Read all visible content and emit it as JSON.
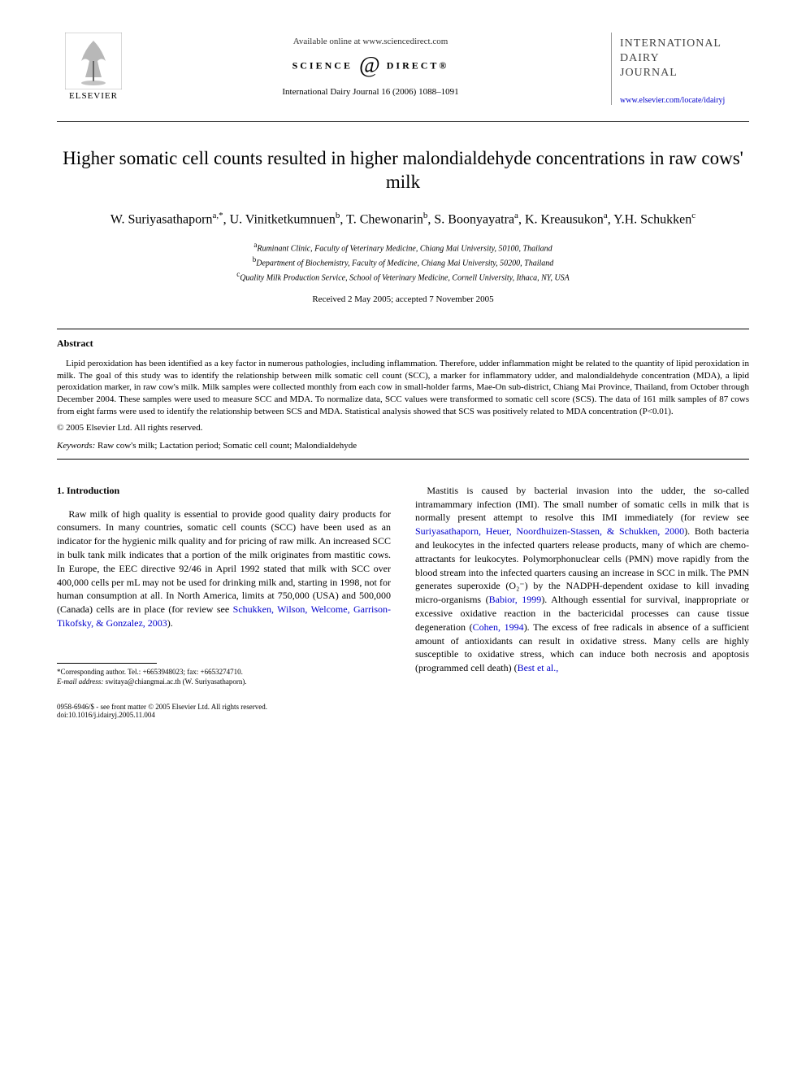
{
  "header": {
    "elsevier_label": "ELSEVIER",
    "available_text": "Available online at www.sciencedirect.com",
    "sd_left": "SCIENCE",
    "sd_right": "DIRECT®",
    "journal_ref": "International Dairy Journal 16 (2006) 1088–1091",
    "brand_line1": "INTERNATIONAL",
    "brand_line2": "DAIRY",
    "brand_line3": "JOURNAL",
    "journal_url": "www.elsevier.com/locate/idairyj"
  },
  "title": "Higher somatic cell counts resulted in higher malondialdehyde concentrations in raw cows' milk",
  "authors_html": "W. Suriyasathaporn<sup>a,*</sup>, U. Vinitketkumnuen<sup>b</sup>, T. Chewonarin<sup>b</sup>, S. Boonyayatra<sup>a</sup>, K. Kreausukon<sup>a</sup>, Y.H. Schukken<sup>c</sup>",
  "affiliations": [
    {
      "sup": "a",
      "text": "Ruminant Clinic, Faculty of Veterinary Medicine, Chiang Mai University, 50100, Thailand"
    },
    {
      "sup": "b",
      "text": "Department of Biochemistry, Faculty of Medicine, Chiang Mai University, 50200, Thailand"
    },
    {
      "sup": "c",
      "text": "Quality Milk Production Service, School of Veterinary Medicine, Cornell University, Ithaca, NY, USA"
    }
  ],
  "received": "Received 2 May 2005; accepted 7 November 2005",
  "abstract": {
    "heading": "Abstract",
    "body": "Lipid peroxidation has been identified as a key factor in numerous pathologies, including inflammation. Therefore, udder inflammation might be related to the quantity of lipid peroxidation in milk. The goal of this study was to identify the relationship between milk somatic cell count (SCC), a marker for inflammatory udder, and malondialdehyde concentration (MDA), a lipid peroxidation marker, in raw cow's milk. Milk samples were collected monthly from each cow in small-holder farms, Mae-On sub-district, Chiang Mai Province, Thailand, from October through December 2004. These samples were used to measure SCC and MDA. To normalize data, SCC values were transformed to somatic cell score (SCS). The data of 161 milk samples of 87 cows from eight farms were used to identify the relationship between SCS and MDA. Statistical analysis showed that SCS was positively related to MDA concentration (P<0.01).",
    "copyright": "© 2005 Elsevier Ltd. All rights reserved."
  },
  "keywords": {
    "label": "Keywords:",
    "text": " Raw cow's milk; Lactation period; Somatic cell count; Malondialdehyde"
  },
  "intro": {
    "heading": "1. Introduction",
    "col1_p1_a": "Raw milk of high quality is essential to provide good quality dairy products for consumers. In many countries, somatic cell counts (SCC) have been used as an indicator for the hygienic milk quality and for pricing of raw milk. An increased SCC in bulk tank milk indicates that a portion of the milk originates from mastitic cows. In Europe, the EEC directive 92/46 in April 1992 stated that milk with SCC over 400,000 cells per mL may not be used for drinking milk and, starting in 1998, not for human consumption at all. In North America, limits at 750,000 (USA) and 500,000 (Canada) cells are in place (for review see ",
    "col1_ref1": "Schukken, Wilson, Welcome, Garrison-Tikofsky, & Gonzalez, 2003",
    "col1_p1_b": ").",
    "col2_p1_a": "Mastitis is caused by bacterial invasion into the udder, the so-called intramammary infection (IMI). The small number of somatic cells in milk that is normally present attempt to resolve this IMI immediately (for review see ",
    "col2_ref1": "Suriyasathaporn, Heuer, Noordhuizen-Stassen, & Schukken, 2000",
    "col2_p1_b": "). Both bacteria and leukocytes in the infected quarters release products, many of which are chemo-attractants for leukocytes. Polymorphonuclear cells (PMN) move rapidly from the blood stream into the infected quarters causing an increase in SCC in milk. The PMN generates superoxide (O₂⁻) by the NADPH-dependent oxidase to kill invading micro-organisms (",
    "col2_ref2": "Babior, 1999",
    "col2_p1_c": "). Although essential for survival, inappropriate or excessive oxidative reaction in the bactericidal processes can cause tissue degeneration (",
    "col2_ref3": "Cohen, 1994",
    "col2_p1_d": "). The excess of free radicals in absence of a sufficient amount of antioxidants can result in oxidative stress. Many cells are highly susceptible to oxidative stress, which can induce both necrosis and apoptosis (programmed cell death) (",
    "col2_ref4": "Best et al.,"
  },
  "footnote": {
    "corr": "*Corresponding author. Tel.: +6653948023; fax: +6653274710.",
    "email_label": "E-mail address:",
    "email": " switaya@chiangmai.ac.th (W. Suriyasathaporn)."
  },
  "footer": {
    "issn": "0958-6946/$ - see front matter © 2005 Elsevier Ltd. All rights reserved.",
    "doi": "doi:10.1016/j.idairyj.2005.11.004"
  },
  "colors": {
    "link": "#0000cc",
    "text": "#000000",
    "bg": "#ffffff"
  }
}
